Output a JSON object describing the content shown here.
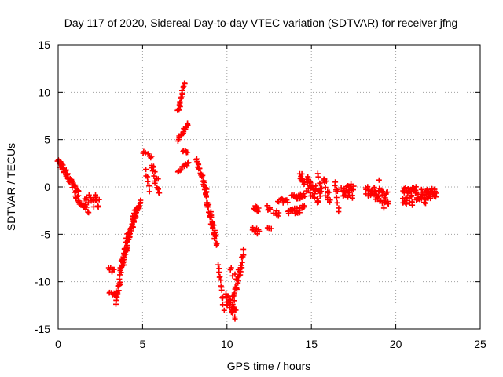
{
  "chart_data": {
    "type": "scatter",
    "title": "Day 117 of 2020, Sidereal Day-to-day VTEC variation (SDTVAR) for receiver jfng",
    "xlabel": "GPS time / hours",
    "ylabel": "SDTVAR / TECUs",
    "xlim": [
      0,
      25
    ],
    "ylim": [
      -15,
      15
    ],
    "xticks": [
      0,
      5,
      10,
      15,
      20,
      25
    ],
    "yticks": [
      -15,
      -10,
      -5,
      0,
      5,
      10,
      15
    ],
    "grid": true,
    "marker": "+",
    "color": "#ff0000",
    "segments": [
      {
        "x": [
          0.0,
          1.2
        ],
        "y": [
          2.8,
          -0.8
        ],
        "spread": 0.7,
        "n": 55
      },
      {
        "x": [
          1.0,
          1.8
        ],
        "y": [
          -1.0,
          -2.5
        ],
        "spread": 0.6,
        "n": 20
      },
      {
        "x": [
          1.6,
          2.4
        ],
        "y": [
          -1.2,
          -1.8
        ],
        "spread": 1.1,
        "n": 16
      },
      {
        "x": [
          2.2,
          2.4
        ],
        "y": [
          -0.6,
          -2.2
        ],
        "spread": 0.5,
        "n": 6
      },
      {
        "x": [
          3.0,
          3.3
        ],
        "y": [
          -8.2,
          -9.0
        ],
        "spread": 0.8,
        "n": 6
      },
      {
        "x": [
          3.0,
          3.4
        ],
        "y": [
          -11.0,
          -11.5
        ],
        "spread": 0.6,
        "n": 6
      },
      {
        "x": [
          3.4,
          4.1
        ],
        "y": [
          -12.0,
          -5.5
        ],
        "spread": 1.4,
        "n": 45
      },
      {
        "x": [
          3.8,
          4.6
        ],
        "y": [
          -8.0,
          -2.5
        ],
        "spread": 1.2,
        "n": 45
      },
      {
        "x": [
          4.4,
          4.9
        ],
        "y": [
          -4.0,
          -1.5
        ],
        "spread": 0.8,
        "n": 24
      },
      {
        "x": [
          5.0,
          5.5
        ],
        "y": [
          3.7,
          3.3
        ],
        "spread": 0.3,
        "n": 6
      },
      {
        "x": [
          5.2,
          5.4
        ],
        "y": [
          1.8,
          -0.5
        ],
        "spread": 0.4,
        "n": 6
      },
      {
        "x": [
          5.5,
          6.0
        ],
        "y": [
          2.3,
          -0.5
        ],
        "spread": 1.6,
        "n": 18
      },
      {
        "x": [
          7.1,
          7.5
        ],
        "y": [
          8.0,
          11.0
        ],
        "spread": 0.5,
        "n": 18
      },
      {
        "x": [
          7.1,
          7.7
        ],
        "y": [
          5.0,
          6.7
        ],
        "spread": 0.4,
        "n": 18
      },
      {
        "x": [
          7.4,
          7.7
        ],
        "y": [
          3.8,
          3.5
        ],
        "spread": 0.4,
        "n": 6
      },
      {
        "x": [
          7.1,
          7.7
        ],
        "y": [
          1.5,
          2.5
        ],
        "spread": 0.6,
        "n": 12
      },
      {
        "x": [
          8.2,
          8.8
        ],
        "y": [
          3.0,
          -0.5
        ],
        "spread": 0.6,
        "n": 24
      },
      {
        "x": [
          8.7,
          9.4
        ],
        "y": [
          -0.5,
          -6.0
        ],
        "spread": 1.0,
        "n": 45
      },
      {
        "x": [
          9.5,
          9.8
        ],
        "y": [
          -8.2,
          -12.8
        ],
        "spread": 0.7,
        "n": 14
      },
      {
        "x": [
          9.9,
          10.5
        ],
        "y": [
          -11.5,
          -13.5
        ],
        "spread": 1.2,
        "n": 28
      },
      {
        "x": [
          10.3,
          11.0
        ],
        "y": [
          -12.5,
          -7.0
        ],
        "spread": 1.2,
        "n": 32
      },
      {
        "x": [
          10.2,
          10.6
        ],
        "y": [
          -8.5,
          -10.0
        ],
        "spread": 0.6,
        "n": 6
      },
      {
        "x": [
          11.5,
          11.9
        ],
        "y": [
          -4.5,
          -4.7
        ],
        "spread": 0.6,
        "n": 10
      },
      {
        "x": [
          11.6,
          11.9
        ],
        "y": [
          -2.0,
          -2.5
        ],
        "spread": 0.8,
        "n": 8
      },
      {
        "x": [
          12.4,
          12.6
        ],
        "y": [
          -2.2,
          -2.5
        ],
        "spread": 0.5,
        "n": 5
      },
      {
        "x": [
          12.4,
          12.6
        ],
        "y": [
          -4.2,
          -4.4
        ],
        "spread": 0.3,
        "n": 3
      },
      {
        "x": [
          12.8,
          13.1
        ],
        "y": [
          -2.5,
          -3.0
        ],
        "spread": 0.6,
        "n": 6
      },
      {
        "x": [
          13.0,
          13.6
        ],
        "y": [
          -1.3,
          -1.8
        ],
        "spread": 0.8,
        "n": 10
      },
      {
        "x": [
          13.6,
          14.6
        ],
        "y": [
          -2.8,
          -2.2
        ],
        "spread": 0.7,
        "n": 22
      },
      {
        "x": [
          13.8,
          14.6
        ],
        "y": [
          -1.1,
          -0.9
        ],
        "spread": 0.6,
        "n": 20
      },
      {
        "x": [
          14.3,
          14.6
        ],
        "y": [
          1.5,
          0.0
        ],
        "spread": 0.8,
        "n": 10
      },
      {
        "x": [
          14.7,
          15.5
        ],
        "y": [
          0.5,
          -1.2
        ],
        "spread": 1.8,
        "n": 32
      },
      {
        "x": [
          15.4,
          15.6
        ],
        "y": [
          0.8,
          -0.8
        ],
        "spread": 1.4,
        "n": 8
      },
      {
        "x": [
          15.7,
          16.1
        ],
        "y": [
          0.5,
          -1.0
        ],
        "spread": 1.8,
        "n": 14
      },
      {
        "x": [
          16.4,
          16.6
        ],
        "y": [
          0.6,
          -2.2
        ],
        "spread": 1.0,
        "n": 10
      },
      {
        "x": [
          16.8,
          17.5
        ],
        "y": [
          -0.2,
          -0.5
        ],
        "spread": 1.5,
        "n": 26
      },
      {
        "x": [
          18.2,
          18.8
        ],
        "y": [
          -0.3,
          -0.6
        ],
        "spread": 1.2,
        "n": 20
      },
      {
        "x": [
          18.8,
          19.6
        ],
        "y": [
          -0.8,
          -1.2
        ],
        "spread": 1.3,
        "n": 26
      },
      {
        "x": [
          19.0,
          19.3
        ],
        "y": [
          0.5,
          -2.2
        ],
        "spread": 0.6,
        "n": 6
      },
      {
        "x": [
          20.4,
          21.0
        ],
        "y": [
          -0.8,
          -1.2
        ],
        "spread": 1.8,
        "n": 26
      },
      {
        "x": [
          21.0,
          21.8
        ],
        "y": [
          -0.6,
          -1.0
        ],
        "spread": 1.5,
        "n": 30
      },
      {
        "x": [
          21.8,
          22.4
        ],
        "y": [
          -0.5,
          -0.7
        ],
        "spread": 1.4,
        "n": 24
      }
    ]
  }
}
